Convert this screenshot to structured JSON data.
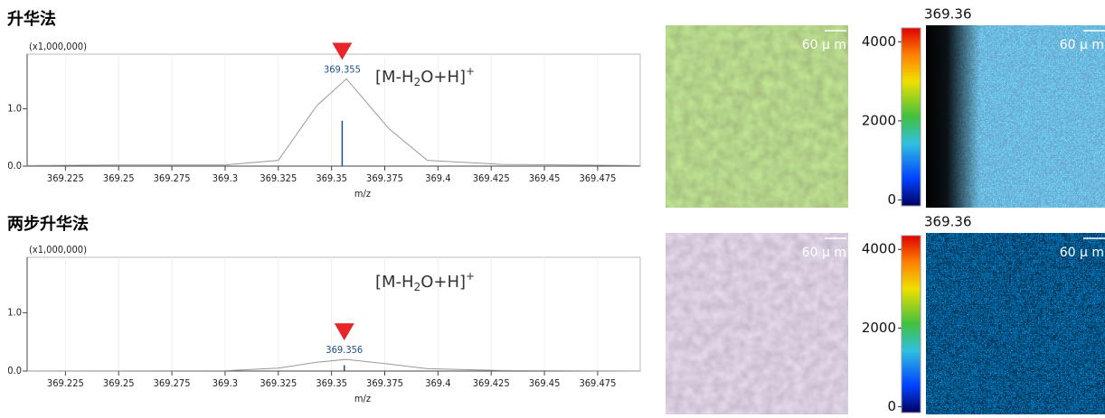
{
  "chart_data": [
    {
      "type": "line",
      "title": "升华法",
      "multiplier": "(x1,000,000)",
      "xlabel": "m/z",
      "annotation_parts": [
        "[M-H",
        "2",
        "O+H]",
        "+"
      ],
      "x": [
        369.207,
        369.25,
        369.3,
        369.325,
        369.343,
        369.357,
        369.377,
        369.395,
        369.43,
        369.495
      ],
      "values": [
        0.01,
        0.02,
        0.02,
        0.1,
        1.05,
        1.52,
        0.65,
        0.1,
        0.03,
        0.01
      ],
      "color": "#999999",
      "sticks": {
        "x": [
          369.355
        ],
        "values": [
          0.79
        ],
        "color": "#1f4e8c"
      },
      "xlim": [
        369.207,
        369.495
      ],
      "ylim": [
        0,
        1.95
      ],
      "xticks": [
        369.225,
        369.25,
        369.275,
        369.3,
        369.325,
        369.35,
        369.375,
        369.4,
        369.425,
        369.45,
        369.475
      ],
      "yticks": [
        {
          "value": 0,
          "label": "0.0"
        },
        {
          "value": 1,
          "label": "1.0"
        }
      ],
      "grid": true
    },
    {
      "type": "line",
      "title": "两步升华法",
      "multiplier": "(x1,000,000)",
      "xlabel": "m/z",
      "annotation_parts": [
        "[M-H",
        "2",
        "O+H]",
        "+"
      ],
      "x": [
        369.207,
        369.3,
        369.325,
        369.343,
        369.357,
        369.377,
        369.395,
        369.43,
        369.495
      ],
      "values": [
        0,
        0.005,
        0.05,
        0.15,
        0.2,
        0.12,
        0.04,
        0.01,
        0
      ],
      "color": "#999999",
      "sticks": {
        "x": [
          369.356
        ],
        "values": [
          0.1
        ],
        "color": "#1f4e8c"
      },
      "xlim": [
        369.207,
        369.495
      ],
      "ylim": [
        0,
        1.95
      ],
      "xticks": [
        369.225,
        369.25,
        369.275,
        369.3,
        369.325,
        369.35,
        369.375,
        369.4,
        369.425,
        369.45,
        369.475
      ],
      "yticks": [
        {
          "value": 0,
          "label": "0.0"
        },
        {
          "value": 1,
          "label": "1.0"
        }
      ],
      "grid": true
    }
  ],
  "panels": [
    {
      "mz": "369.36",
      "scale_bar": "60 μ m",
      "colorbar_lim": [
        -150,
        4350
      ],
      "colorbar_ticks": [
        0,
        2000,
        4000
      ]
    },
    {
      "mz": "369.36",
      "scale_bar": "60 μ m",
      "colorbar_lim": [
        -150,
        4350
      ],
      "colorbar_ticks": [
        0,
        2000,
        4000
      ]
    }
  ]
}
